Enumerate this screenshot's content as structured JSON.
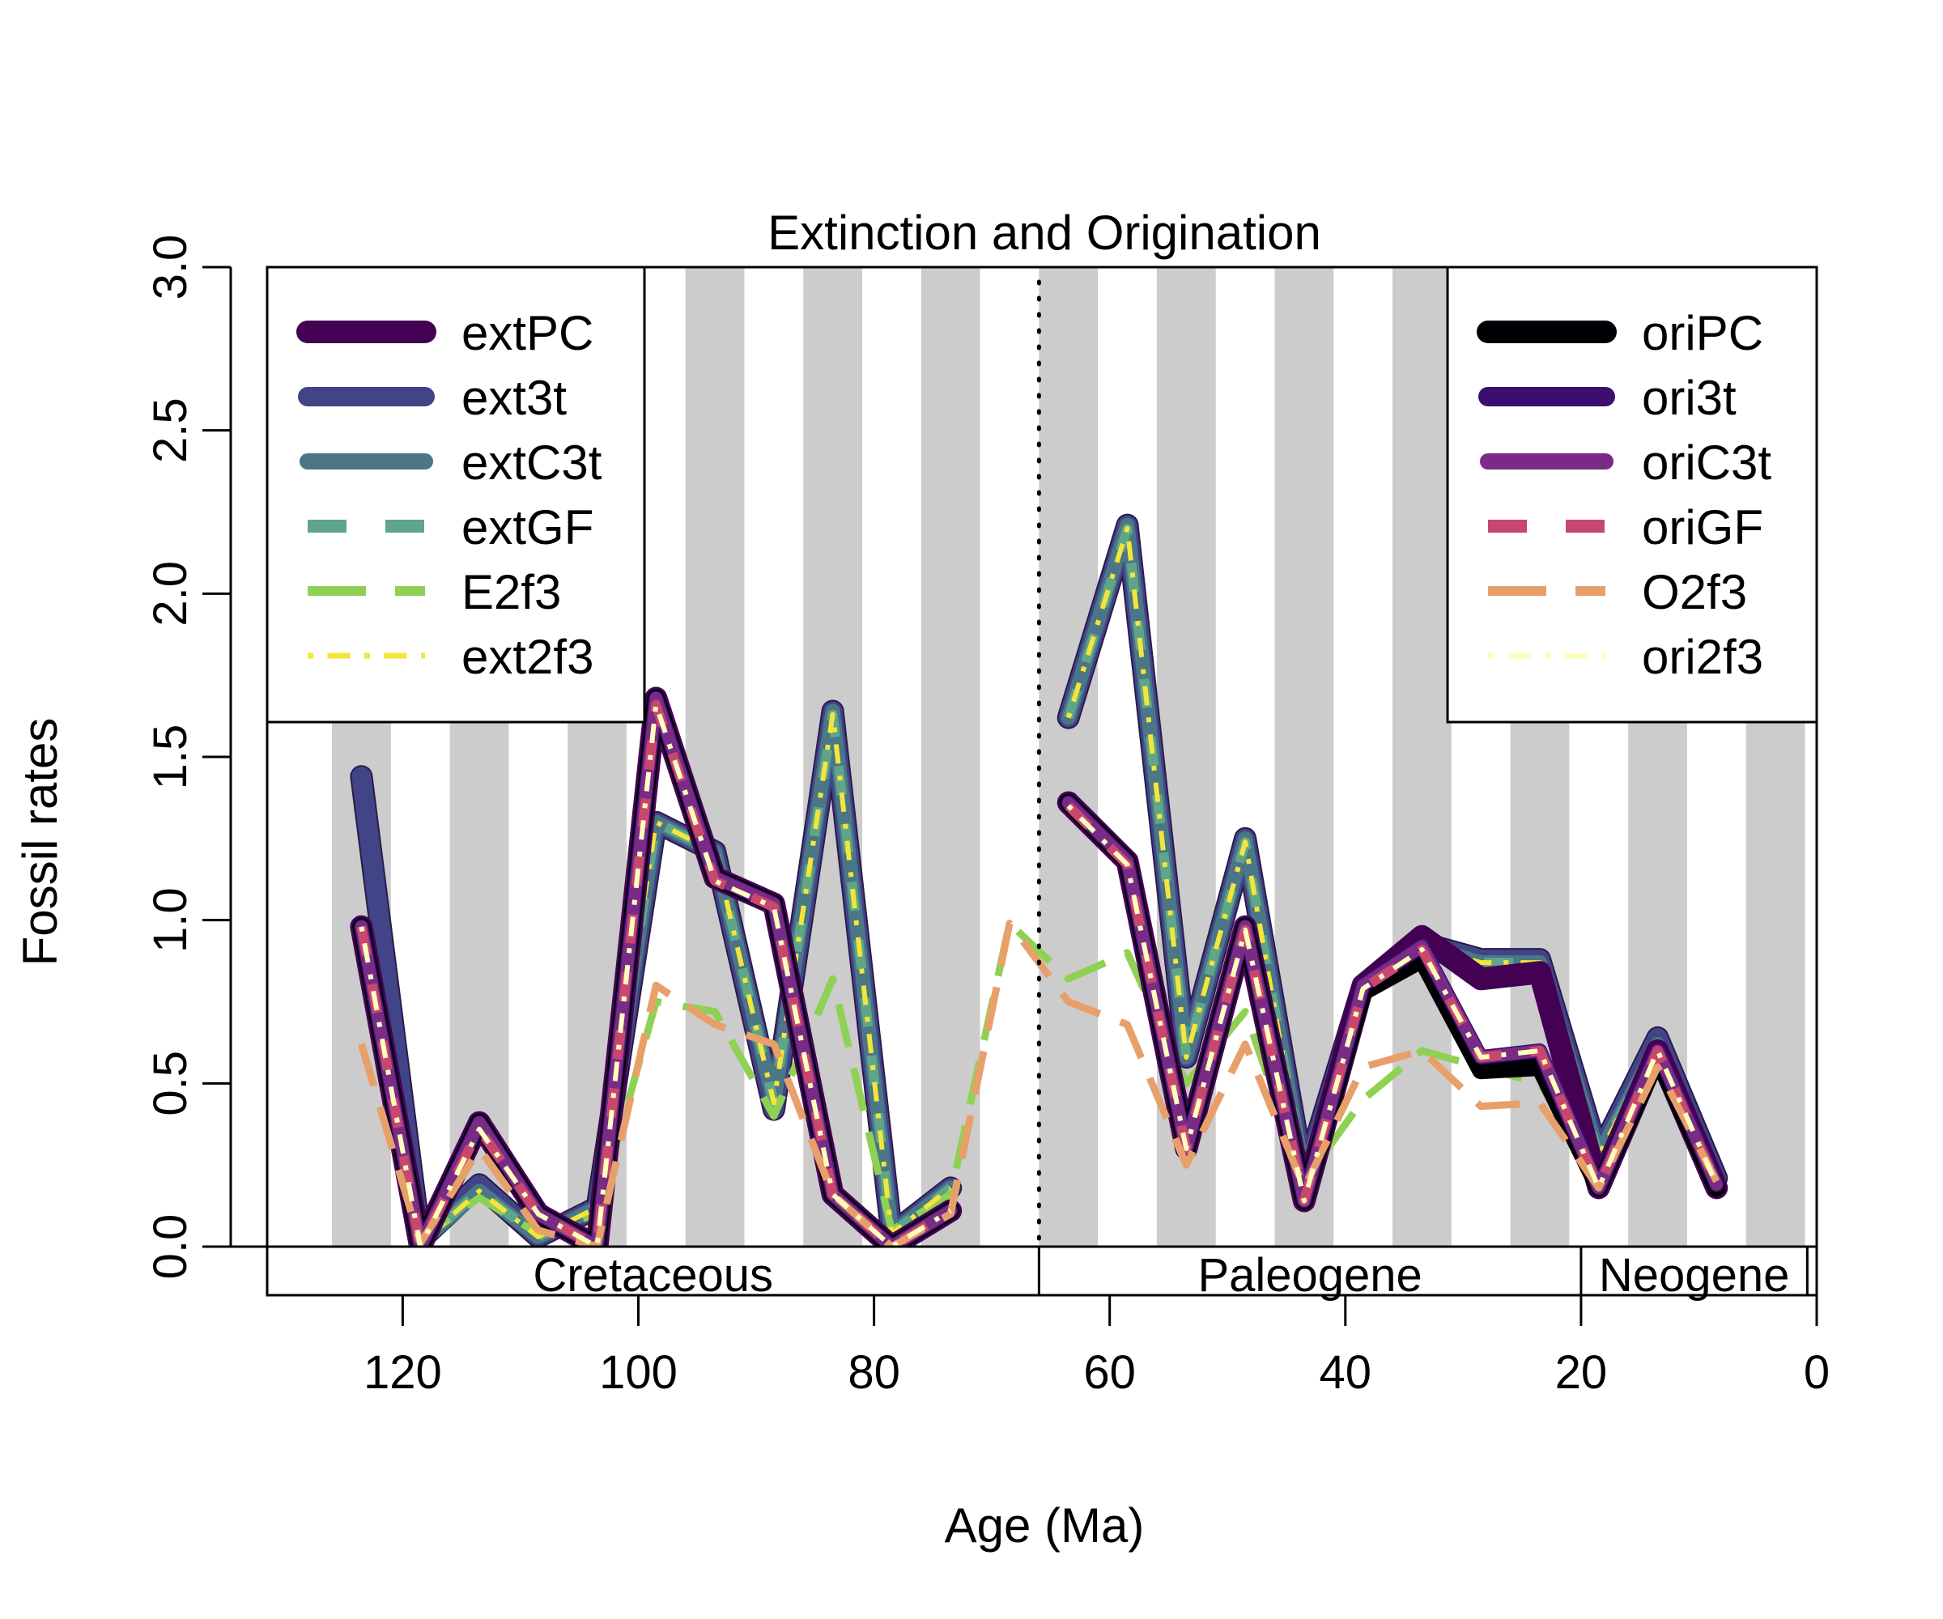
{
  "chart_data": {
    "type": "line",
    "title": "Extinction and Origination",
    "xlabel": "Age (Ma)",
    "ylabel": "Fossil rates",
    "xlim": [
      131.5,
      0
    ],
    "ylim": [
      0,
      3
    ],
    "x_ticks": [
      120,
      100,
      80,
      60,
      40,
      20,
      0
    ],
    "x_tick_labels": [
      "120",
      "100",
      "80",
      "60",
      "40",
      "20",
      "0"
    ],
    "y_ticks": [
      0,
      0.5,
      1,
      1.5,
      2,
      2.5,
      3
    ],
    "y_tick_labels": [
      "0.0",
      "0.5",
      "1.0",
      "1.5",
      "2.0",
      "2.5",
      "3.0"
    ],
    "grid": false,
    "background_bands": {
      "color": "#cccccc",
      "width_ma": 5,
      "starts": [
        126,
        116,
        106,
        96,
        86,
        76,
        66,
        56,
        46,
        36,
        26,
        16,
        6
      ]
    },
    "kpg_boundary": 66,
    "periods": [
      {
        "name": "Cretaceous",
        "start": 131.5,
        "end": 66
      },
      {
        "name": "Paleogene",
        "start": 66,
        "end": 20
      },
      {
        "name": "Neogene",
        "start": 20,
        "end": 0.8
      }
    ],
    "legend_ext": {
      "position": "top-left",
      "entries": [
        {
          "name": "extPC",
          "color": "#440154",
          "dash": "solid",
          "width": 28
        },
        {
          "name": "ext3t",
          "color": "#414487",
          "dash": "solid",
          "width": 24
        },
        {
          "name": "extC3t",
          "color": "#4a7688",
          "dash": "solid",
          "width": 20
        },
        {
          "name": "extGF",
          "color": "#5fa589",
          "dash": "dashed",
          "width": 16
        },
        {
          "name": "E2f3",
          "color": "#8fd154",
          "dash": "longdash",
          "width": 12
        },
        {
          "name": "ext2f3",
          "color": "#f3e53a",
          "dash": "dotdash",
          "width": 7
        }
      ]
    },
    "legend_ori": {
      "position": "top-right",
      "entries": [
        {
          "name": "oriPC",
          "color": "#000004",
          "dash": "solid",
          "width": 28
        },
        {
          "name": "ori3t",
          "color": "#3b0f70",
          "dash": "solid",
          "width": 24
        },
        {
          "name": "oriC3t",
          "color": "#7a2b86",
          "dash": "solid",
          "width": 20
        },
        {
          "name": "oriGF",
          "color": "#c8476e",
          "dash": "dashed",
          "width": 16
        },
        {
          "name": "O2f3",
          "color": "#e8a06a",
          "dash": "longdash",
          "width": 12
        },
        {
          "name": "ori2f3",
          "color": "#fcfdbf",
          "dash": "dotdash",
          "width": 7
        }
      ]
    },
    "series": [
      {
        "name": "ext3t",
        "color": "#414487",
        "dash": "solid",
        "width": 24,
        "outline": true,
        "segments": [
          {
            "x": [
              123.5,
              118.5,
              113.5,
              108.5,
              103.5,
              98.5,
              93.5,
              88.5,
              83.5,
              78.5,
              73.5
            ],
            "y": [
              1.44,
              0.02,
              0.19,
              0.03,
              0.12,
              1.3,
              1.21,
              0.42,
              1.64,
              0.04,
              0.18
            ]
          },
          {
            "x": [
              63.5,
              58.5,
              53.5,
              48.5,
              43.5,
              38.5,
              33.5,
              28.5,
              23.5,
              18.5,
              13.5,
              8.5
            ],
            "y": [
              1.62,
              2.21,
              0.58,
              1.25,
              0.21,
              0.8,
              0.93,
              0.88,
              0.88,
              0.28,
              0.64,
              0.21
            ]
          }
        ]
      },
      {
        "name": "extC3t",
        "color": "#4a7688",
        "dash": "solid",
        "width": 18,
        "outline": false,
        "segments": [
          {
            "x": [
              123.5,
              118.5,
              113.5,
              108.5,
              103.5,
              98.5,
              93.5,
              88.5,
              83.5,
              78.5,
              73.5
            ],
            "y": [
              0.95,
              0.01,
              0.17,
              0.03,
              0.12,
              1.3,
              1.21,
              0.44,
              1.64,
              0.04,
              0.18
            ]
          },
          {
            "x": [
              63.5,
              58.5,
              53.5,
              48.5,
              43.5,
              38.5,
              33.5,
              28.5,
              23.5,
              18.5,
              13.5,
              8.5
            ],
            "y": [
              1.62,
              2.21,
              0.58,
              1.25,
              0.21,
              0.8,
              0.92,
              0.87,
              0.87,
              0.28,
              0.62,
              0.21
            ]
          }
        ]
      },
      {
        "name": "extGF",
        "color": "#5fa589",
        "dash": "dashed",
        "width": 12,
        "outline": false,
        "segments": [
          {
            "x": [
              123.5,
              118.5,
              113.5,
              108.5,
              103.5,
              98.5,
              93.5,
              88.5,
              83.5,
              78.5,
              73.5
            ],
            "y": [
              0.95,
              0.01,
              0.17,
              0.03,
              0.12,
              1.3,
              1.21,
              0.44,
              1.63,
              0.04,
              0.18
            ]
          },
          {
            "x": [
              63.5,
              58.5,
              53.5,
              48.5,
              43.5,
              38.5,
              33.5,
              28.5,
              23.5,
              18.5,
              13.5,
              8.5
            ],
            "y": [
              1.62,
              2.2,
              0.58,
              1.24,
              0.21,
              0.8,
              0.92,
              0.87,
              0.87,
              0.28,
              0.62,
              0.21
            ]
          }
        ]
      },
      {
        "name": "E2f3",
        "color": "#8fd154",
        "dash": "longdash",
        "width": 9,
        "outline": false,
        "segments": [
          {
            "x": [
              123.5,
              118.5,
              113.5,
              108.5,
              103.5,
              98.5,
              93.5,
              88.5,
              83.5,
              78.5,
              73.5,
              68.5,
              63.5,
              58.5,
              53.5,
              48.5,
              43.5,
              38.5,
              33.5,
              28.5,
              23.5,
              18.5,
              13.5,
              8.5
            ],
            "y": [
              0.62,
              0.02,
              0.15,
              0.04,
              0.1,
              0.75,
              0.72,
              0.4,
              0.82,
              0.05,
              0.16,
              0.99,
              0.82,
              0.9,
              0.5,
              0.72,
              0.2,
              0.45,
              0.6,
              0.55,
              0.5,
              0.22,
              0.55,
              0.2
            ]
          }
        ]
      },
      {
        "name": "ext2f3",
        "color": "#f3e53a",
        "dash": "dotdash",
        "width": 6,
        "outline": false,
        "segments": [
          {
            "x": [
              123.5,
              118.5,
              113.5,
              108.5,
              103.5,
              98.5,
              93.5,
              88.5,
              83.5,
              78.5,
              73.5
            ],
            "y": [
              0.95,
              0.01,
              0.17,
              0.03,
              0.12,
              1.3,
              1.21,
              0.44,
              1.63,
              0.04,
              0.18
            ]
          },
          {
            "x": [
              63.5,
              58.5,
              53.5,
              48.5,
              43.5,
              38.5,
              33.5,
              28.5,
              23.5,
              18.5,
              13.5,
              8.5
            ],
            "y": [
              1.62,
              2.2,
              0.58,
              1.24,
              0.21,
              0.8,
              0.92,
              0.87,
              0.87,
              0.28,
              0.62,
              0.21
            ]
          }
        ]
      },
      {
        "name": "extPC",
        "color": "#440154",
        "dash": "solid",
        "width": 28,
        "outline": false,
        "segments": [
          {
            "x": [
              123.5,
              118.5,
              113.5,
              108.5,
              103.5,
              98.5,
              93.5,
              88.5,
              83.5,
              78.5,
              73.5
            ],
            "y": [
              0.98,
              0.0,
              0.38,
              0.1,
              0.0,
              1.68,
              1.13,
              1.05,
              0.16,
              0.0,
              0.11
            ]
          },
          {
            "x": [
              63.5,
              58.5,
              53.5,
              48.5,
              43.5,
              38.5,
              33.5,
              28.5,
              23.5,
              18.5,
              13.5,
              8.5
            ],
            "y": [
              1.36,
              1.18,
              0.3,
              0.98,
              0.14,
              0.8,
              0.95,
              0.82,
              0.84,
              0.18,
              0.6,
              0.18
            ]
          }
        ]
      },
      {
        "name": "oriPC",
        "color": "#000004",
        "dash": "solid",
        "width": 22,
        "outline": false,
        "segments": [
          {
            "x": [
              123.5,
              118.5,
              113.5,
              108.5,
              103.5,
              98.5,
              93.5,
              88.5,
              83.5,
              78.5,
              73.5
            ],
            "y": [
              0.98,
              0.0,
              0.38,
              0.1,
              0.0,
              1.68,
              1.13,
              1.05,
              0.16,
              0.0,
              0.11
            ]
          },
          {
            "x": [
              63.5,
              58.5,
              53.5,
              48.5,
              43.5,
              38.5,
              33.5,
              28.5,
              23.5,
              18.5,
              13.5,
              8.5
            ],
            "y": [
              1.36,
              1.18,
              0.3,
              0.98,
              0.14,
              0.78,
              0.88,
              0.54,
              0.55,
              0.18,
              0.58,
              0.18
            ]
          }
        ]
      },
      {
        "name": "ori3t",
        "color": "#3b0f70",
        "dash": "solid",
        "width": 18,
        "outline": false,
        "segments": [
          {
            "x": [
              123.5,
              118.5,
              113.5,
              108.5,
              103.5,
              98.5,
              93.5,
              88.5,
              83.5,
              78.5,
              73.5
            ],
            "y": [
              0.98,
              0.0,
              0.38,
              0.1,
              0.0,
              1.68,
              1.13,
              1.05,
              0.16,
              0.0,
              0.11
            ]
          },
          {
            "x": [
              63.5,
              58.5,
              53.5,
              48.5,
              43.5,
              38.5,
              33.5,
              28.5,
              23.5,
              18.5,
              13.5,
              8.5
            ],
            "y": [
              1.36,
              1.18,
              0.3,
              0.98,
              0.14,
              0.8,
              0.92,
              0.58,
              0.6,
              0.18,
              0.6,
              0.19
            ]
          }
        ]
      },
      {
        "name": "oriC3t",
        "color": "#7a2b86",
        "dash": "solid",
        "width": 15,
        "outline": false,
        "segments": [
          {
            "x": [
              123.5,
              118.5,
              113.5,
              108.5,
              103.5,
              98.5,
              93.5,
              88.5,
              83.5,
              78.5,
              73.5
            ],
            "y": [
              0.98,
              0.0,
              0.38,
              0.1,
              0.0,
              1.68,
              1.13,
              1.05,
              0.16,
              0.0,
              0.11
            ]
          },
          {
            "x": [
              63.5,
              58.5,
              53.5,
              48.5,
              43.5,
              38.5,
              33.5,
              28.5,
              23.5,
              18.5,
              13.5,
              8.5
            ],
            "y": [
              1.36,
              1.18,
              0.3,
              0.98,
              0.14,
              0.8,
              0.92,
              0.58,
              0.6,
              0.18,
              0.6,
              0.19
            ]
          }
        ]
      },
      {
        "name": "oriGF",
        "color": "#c8476e",
        "dash": "dashed",
        "width": 12,
        "outline": false,
        "segments": [
          {
            "x": [
              123.5,
              118.5,
              113.5,
              108.5,
              103.5,
              98.5,
              93.5,
              88.5,
              83.5,
              78.5,
              73.5
            ],
            "y": [
              0.98,
              0.0,
              0.36,
              0.1,
              0.0,
              1.66,
              1.12,
              1.04,
              0.16,
              0.0,
              0.11
            ]
          },
          {
            "x": [
              63.5,
              58.5,
              53.5,
              48.5,
              43.5,
              38.5,
              33.5,
              28.5,
              23.5,
              18.5,
              13.5,
              8.5
            ],
            "y": [
              1.35,
              1.17,
              0.3,
              0.97,
              0.14,
              0.79,
              0.91,
              0.58,
              0.6,
              0.18,
              0.6,
              0.19
            ]
          }
        ]
      },
      {
        "name": "O2f3",
        "color": "#e8a06a",
        "dash": "longdash",
        "width": 9,
        "outline": false,
        "segments": [
          {
            "x": [
              123.5,
              118.5,
              113.5,
              108.5,
              103.5,
              98.5,
              93.5,
              88.5,
              83.5,
              78.5,
              73.5,
              68.5,
              63.5,
              58.5,
              53.5,
              48.5,
              43.5,
              38.5,
              33.5,
              28.5,
              23.5,
              18.5,
              13.5,
              8.5
            ],
            "y": [
              0.62,
              0.01,
              0.3,
              0.05,
              0.0,
              0.8,
              0.68,
              0.62,
              0.16,
              0.0,
              0.1,
              0.99,
              0.75,
              0.68,
              0.25,
              0.62,
              0.18,
              0.55,
              0.6,
              0.43,
              0.44,
              0.18,
              0.55,
              0.2
            ]
          }
        ]
      },
      {
        "name": "ori2f3",
        "color": "#fcfdbf",
        "dash": "dotdash",
        "width": 6,
        "outline": false,
        "segments": [
          {
            "x": [
              123.5,
              118.5,
              113.5,
              108.5,
              103.5,
              98.5,
              93.5,
              88.5,
              83.5,
              78.5,
              73.5
            ],
            "y": [
              0.98,
              0.0,
              0.36,
              0.1,
              0.0,
              1.66,
              1.12,
              1.04,
              0.16,
              0.0,
              0.11
            ]
          },
          {
            "x": [
              63.5,
              58.5,
              53.5,
              48.5,
              43.5,
              38.5,
              33.5,
              28.5,
              23.5,
              18.5,
              13.5,
              8.5
            ],
            "y": [
              1.35,
              1.17,
              0.3,
              0.97,
              0.14,
              0.79,
              0.91,
              0.58,
              0.6,
              0.18,
              0.6,
              0.19
            ]
          }
        ]
      }
    ]
  }
}
